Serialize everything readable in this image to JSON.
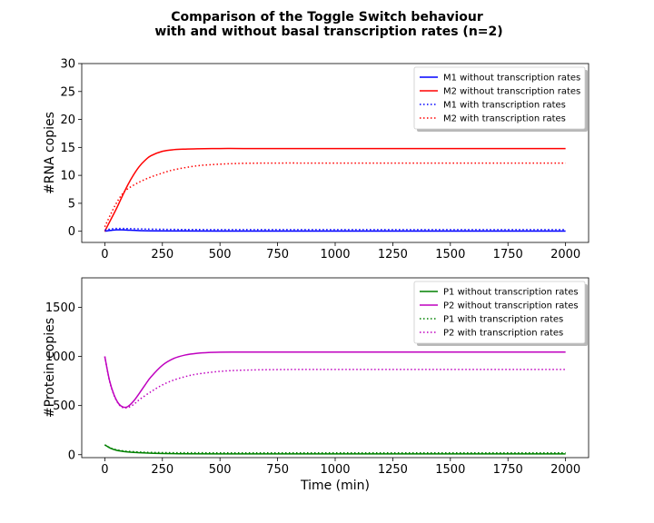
{
  "figure": {
    "title_line1": "Comparison of the Toggle Switch behaviour",
    "title_line2": "with and without basal transcription rates (n=2)"
  },
  "chart_data": [
    {
      "type": "line",
      "title": "",
      "xlabel": "",
      "ylabel": "#RNA copies",
      "xlim": [
        -100,
        2100
      ],
      "ylim": [
        -2,
        30
      ],
      "xticks": [
        0,
        250,
        500,
        750,
        1000,
        1250,
        1500,
        1750,
        2000
      ],
      "yticks": [
        0,
        5,
        10,
        15,
        20,
        25,
        30
      ],
      "grid": false,
      "legend": "top-right",
      "series": [
        {
          "name": "M1 without transcription rates",
          "color": "#0000ff",
          "style": "solid",
          "x": [
            0,
            25,
            50,
            75,
            100,
            150,
            200,
            300,
            500,
            1000,
            2000
          ],
          "y": [
            0,
            0.15,
            0.25,
            0.25,
            0.2,
            0.12,
            0.08,
            0.05,
            0.03,
            0.03,
            0.03
          ]
        },
        {
          "name": "M2 without transcription rates",
          "color": "#ff0000",
          "style": "solid",
          "x": [
            0,
            25,
            50,
            75,
            100,
            125,
            150,
            175,
            200,
            250,
            300,
            350,
            400,
            500,
            600,
            750,
            1000,
            2000
          ],
          "y": [
            0,
            2.0,
            4.0,
            6.2,
            8.3,
            10.1,
            11.6,
            12.7,
            13.5,
            14.3,
            14.6,
            14.7,
            14.75,
            14.8,
            14.8,
            14.8,
            14.8,
            14.8
          ]
        },
        {
          "name": "M1 with transcription rates",
          "color": "#0000ff",
          "style": "dotted",
          "x": [
            0,
            25,
            50,
            75,
            100,
            150,
            200,
            300,
            500,
            1000,
            2000
          ],
          "y": [
            0.2,
            0.4,
            0.5,
            0.5,
            0.48,
            0.42,
            0.38,
            0.33,
            0.3,
            0.3,
            0.3
          ]
        },
        {
          "name": "M2 with transcription rates",
          "color": "#ff0000",
          "style": "dotted",
          "x": [
            0,
            25,
            50,
            75,
            100,
            150,
            200,
            250,
            300,
            400,
            500,
            600,
            750,
            1000,
            2000
          ],
          "y": [
            0.8,
            3.0,
            5.0,
            6.6,
            7.6,
            8.8,
            9.7,
            10.4,
            11.0,
            11.7,
            12.0,
            12.15,
            12.2,
            12.2,
            12.2
          ]
        }
      ]
    },
    {
      "type": "line",
      "title": "",
      "xlabel": "Time (min)",
      "ylabel": "#Protein copies",
      "xlim": [
        -100,
        2100
      ],
      "ylim": [
        -30,
        1800
      ],
      "xticks": [
        0,
        250,
        500,
        750,
        1000,
        1250,
        1500,
        1750,
        2000
      ],
      "yticks": [
        0,
        500,
        1000,
        1500
      ],
      "grid": false,
      "legend": "top-right",
      "series": [
        {
          "name": "P1 without transcription rates",
          "color": "#008000",
          "style": "solid",
          "x": [
            0,
            25,
            50,
            75,
            100,
            150,
            200,
            300,
            500,
            1000,
            2000
          ],
          "y": [
            100,
            65,
            45,
            35,
            28,
            20,
            15,
            10,
            8,
            8,
            8
          ]
        },
        {
          "name": "P2 without transcription rates",
          "color": "#bf00bf",
          "style": "solid",
          "x": [
            0,
            20,
            40,
            60,
            80,
            100,
            125,
            150,
            175,
            200,
            250,
            300,
            350,
            400,
            450,
            500,
            600,
            750,
            1000,
            2000
          ],
          "y": [
            1000,
            760,
            610,
            520,
            485,
            490,
            545,
            625,
            710,
            790,
            910,
            980,
            1015,
            1032,
            1040,
            1043,
            1045,
            1045,
            1045,
            1045
          ]
        },
        {
          "name": "P1 with transcription rates",
          "color": "#008000",
          "style": "dotted",
          "x": [
            0,
            25,
            50,
            75,
            100,
            150,
            200,
            300,
            500,
            1000,
            2000
          ],
          "y": [
            100,
            68,
            50,
            40,
            34,
            27,
            23,
            20,
            19,
            19,
            19
          ]
        },
        {
          "name": "P2 with transcription rates",
          "color": "#bf00bf",
          "style": "dotted",
          "x": [
            0,
            20,
            40,
            60,
            80,
            100,
            125,
            150,
            200,
            250,
            300,
            350,
            400,
            500,
            600,
            750,
            1000,
            2000
          ],
          "y": [
            1000,
            755,
            605,
            515,
            478,
            480,
            510,
            560,
            640,
            710,
            760,
            795,
            820,
            848,
            860,
            866,
            868,
            868
          ]
        }
      ]
    }
  ]
}
